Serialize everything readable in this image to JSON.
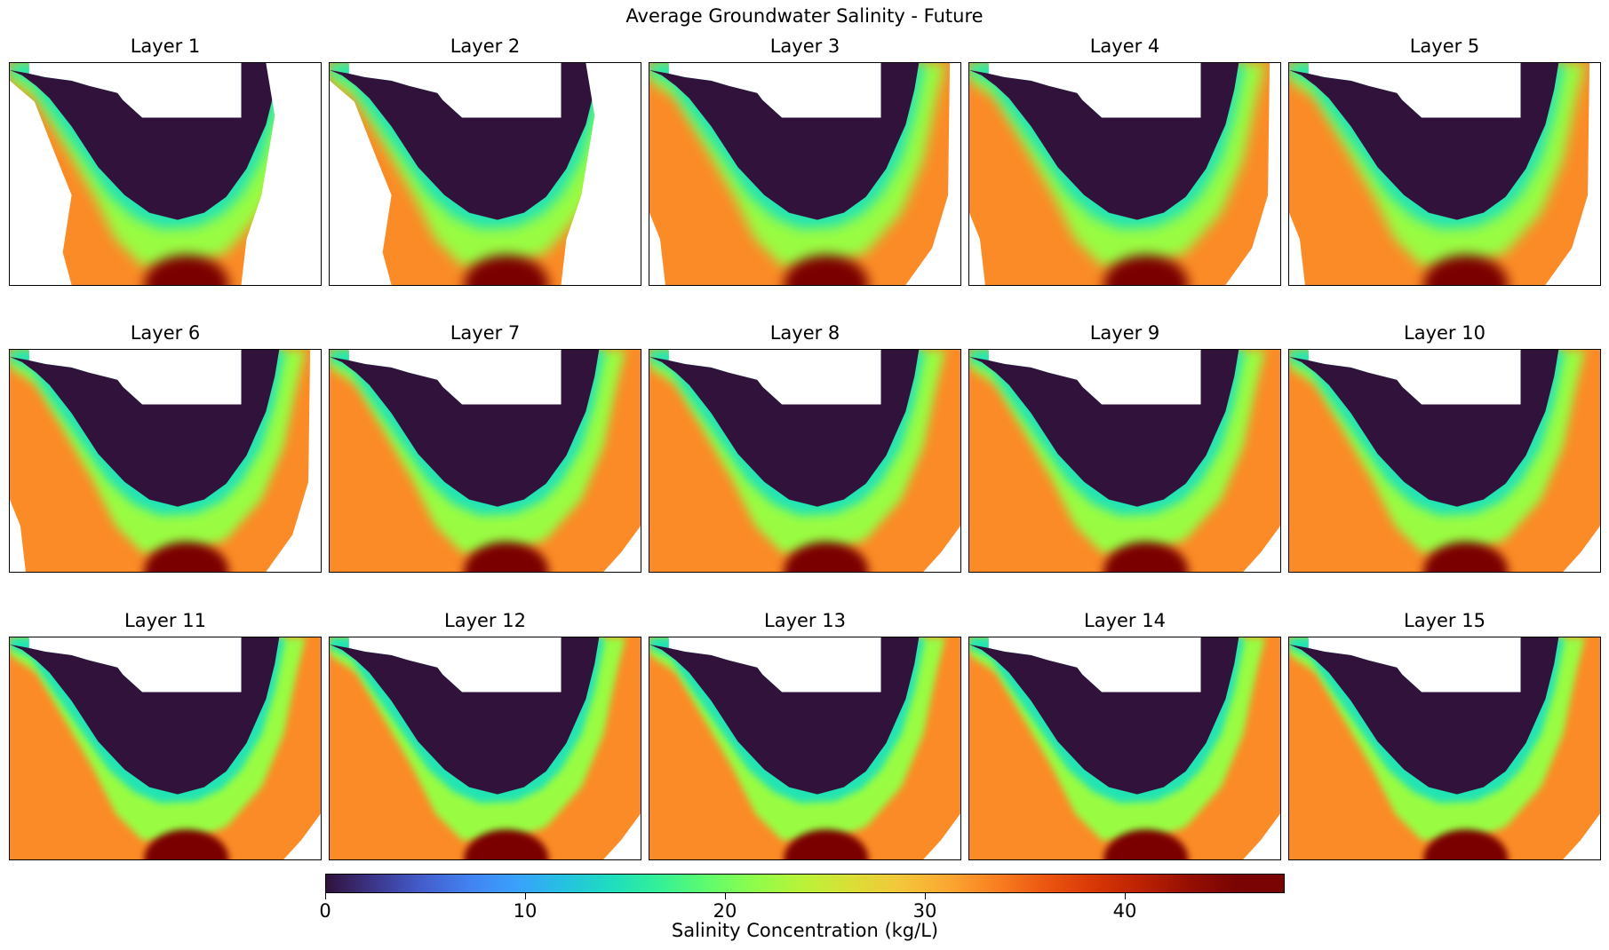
{
  "chart_data": {
    "type": "heatmap",
    "title": "Average Groundwater Salinity - Future",
    "panels": [
      {
        "title": "Layer 1"
      },
      {
        "title": "Layer 2"
      },
      {
        "title": "Layer 3"
      },
      {
        "title": "Layer 4"
      },
      {
        "title": "Layer 5"
      },
      {
        "title": "Layer 6"
      },
      {
        "title": "Layer 7"
      },
      {
        "title": "Layer 8"
      },
      {
        "title": "Layer 9"
      },
      {
        "title": "Layer 10"
      },
      {
        "title": "Layer 11"
      },
      {
        "title": "Layer 12"
      },
      {
        "title": "Layer 13"
      },
      {
        "title": "Layer 14"
      },
      {
        "title": "Layer 15"
      }
    ],
    "grid_layout": {
      "rows": 3,
      "cols": 5
    },
    "colormap": "turbo",
    "colorbar": {
      "label": "Salinity Concentration (kg/L)",
      "range": [
        0,
        48
      ],
      "ticks": [
        0,
        10,
        20,
        30,
        40
      ],
      "tick_labels": [
        "0",
        "10",
        "20",
        "30",
        "40"
      ],
      "orientation": "horizontal",
      "position": "bottom"
    },
    "zones": {
      "fresh_interior": 0,
      "transition_band": 15,
      "coastal_zone": 22,
      "marine": 33,
      "hypersaline_max": 47
    },
    "grid": false
  },
  "colors": {
    "fresh": "#30123b",
    "marine": "#fb9a2e",
    "hypersaline": "#7a0403",
    "no_data": "#ffffff"
  }
}
